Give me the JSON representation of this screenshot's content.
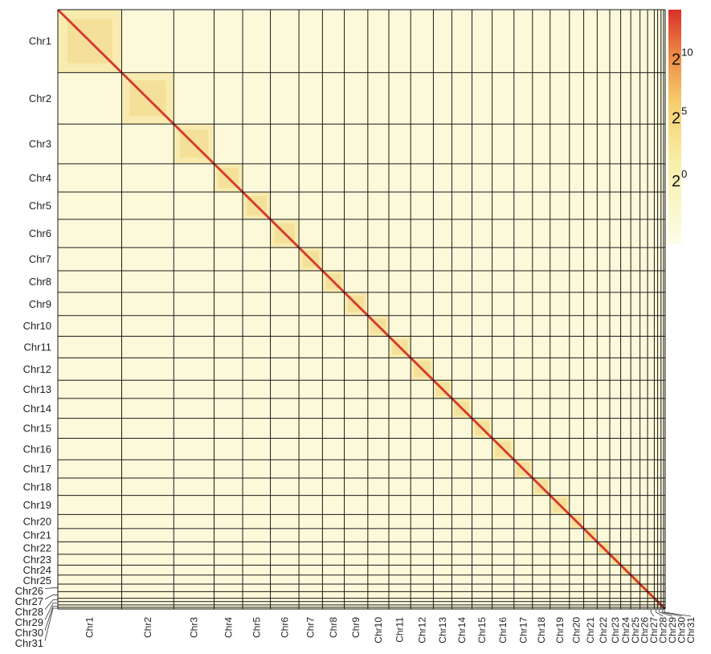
{
  "chart_data": {
    "type": "heatmap",
    "title": "",
    "xlabel": "",
    "ylabel": "",
    "chromosomes": [
      "Chr1",
      "Chr2",
      "Chr3",
      "Chr4",
      "Chr5",
      "Chr6",
      "Chr7",
      "Chr8",
      "Chr9",
      "Chr10",
      "Chr11",
      "Chr12",
      "Chr13",
      "Chr14",
      "Chr15",
      "Chr16",
      "Chr17",
      "Chr18",
      "Chr19",
      "Chr20",
      "Chr21",
      "Chr22",
      "Chr23",
      "Chr24",
      "Chr25",
      "Chr26",
      "Chr27",
      "Chr28",
      "Chr29",
      "Chr30",
      "Chr31"
    ],
    "relative_sizes": [
      76,
      62,
      48,
      34,
      33,
      34,
      28,
      26,
      28,
      25,
      26,
      27,
      22,
      24,
      24,
      26,
      22,
      21,
      23,
      17,
      16,
      15,
      13,
      12,
      11,
      9,
      8,
      4,
      4,
      3,
      2
    ],
    "colorbar": {
      "scale": "log2",
      "ticks": [
        {
          "base": "2",
          "exp": "10",
          "value": 1024
        },
        {
          "base": "2",
          "exp": "5",
          "value": 32
        },
        {
          "base": "2",
          "exp": "0",
          "value": 1
        }
      ],
      "colors": [
        "#fdfde8",
        "#f7e488",
        "#f2a44a",
        "#d8302a"
      ]
    },
    "grid": true,
    "legend_position": "right"
  }
}
